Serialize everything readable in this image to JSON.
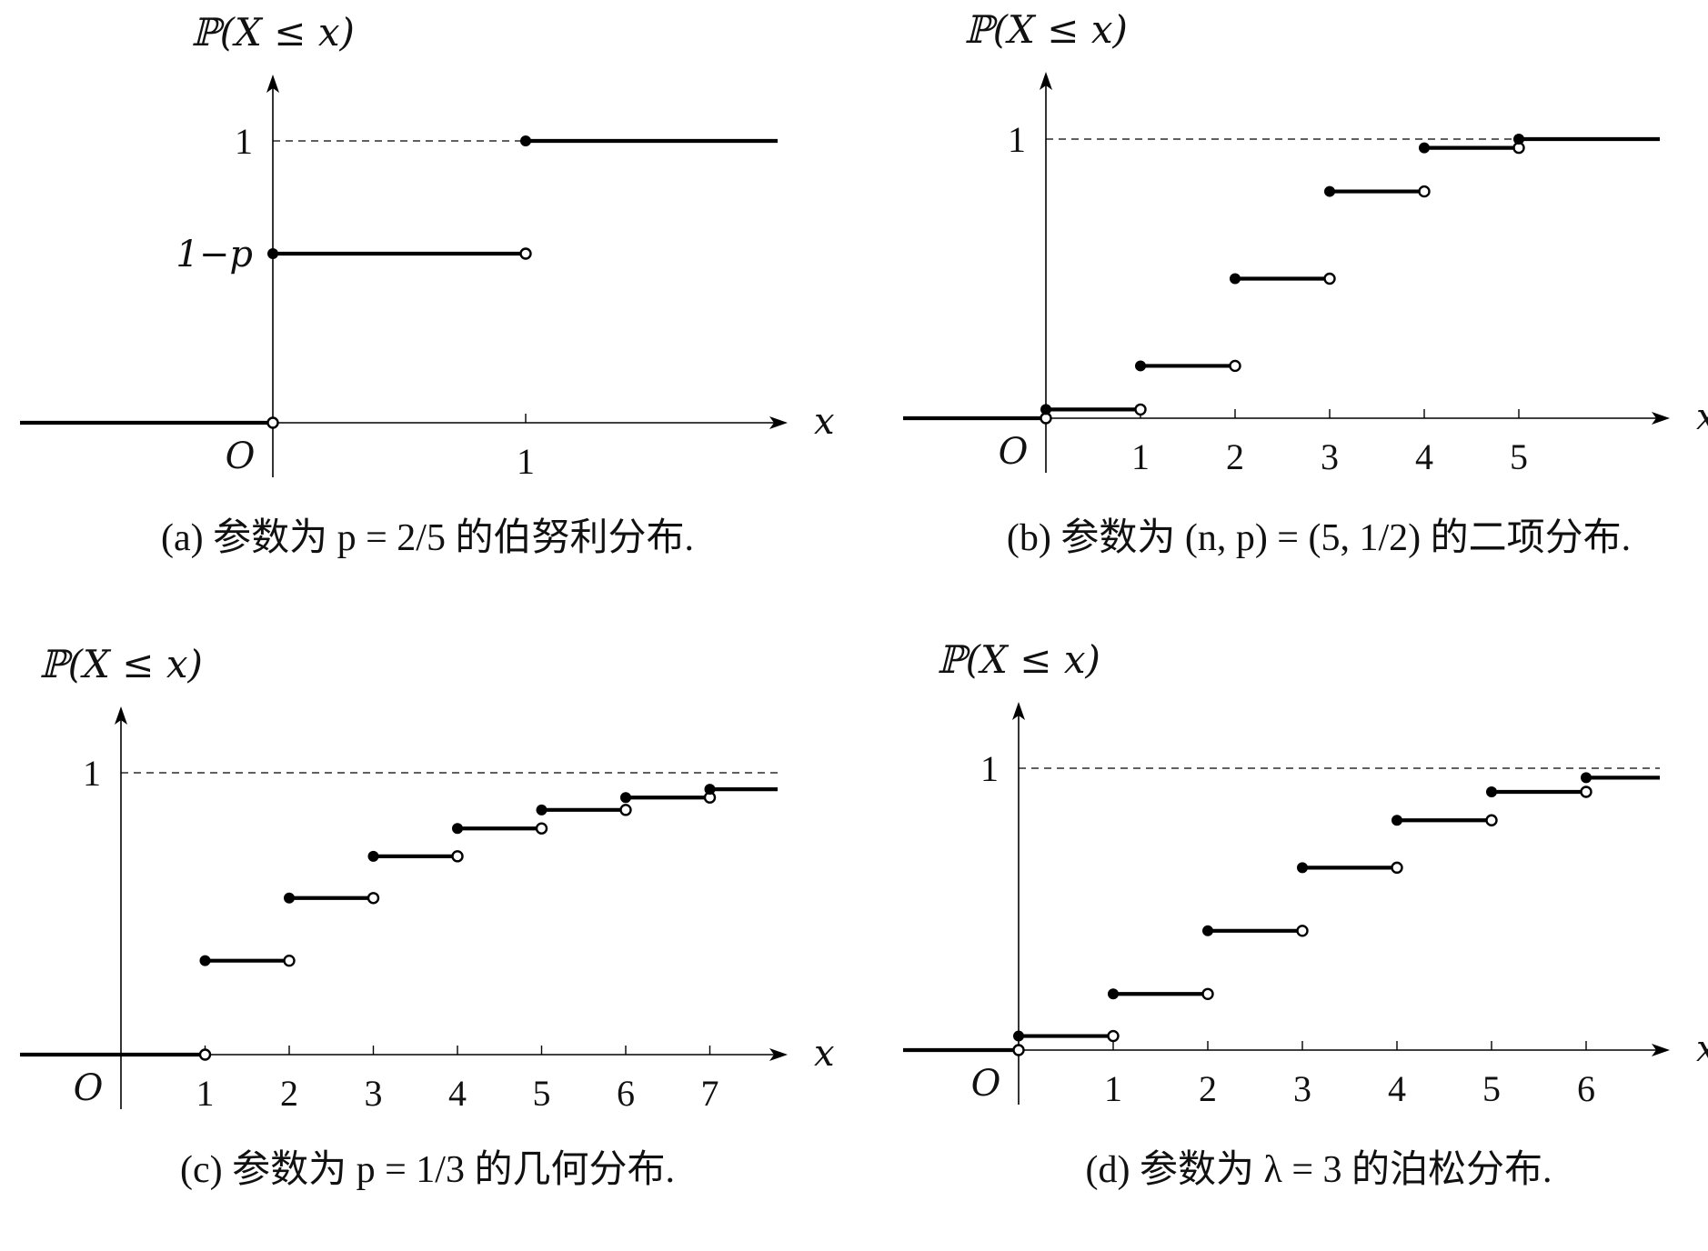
{
  "figure": {
    "charts": [
      {
        "id": "a",
        "ylabel": "ℙ(X ≤ x)",
        "xlabel": "x",
        "origin_label": "O",
        "caption": "(a) 参数为 p = 2/5 的伯努利分布.",
        "x_ticks": [
          "1"
        ],
        "y_ticks": [
          {
            "label": "1",
            "value": 1.0,
            "dashed": true
          },
          {
            "label": "1−p",
            "value": 0.6,
            "dashed": false
          }
        ]
      },
      {
        "id": "b",
        "ylabel": "ℙ(X ≤ x)",
        "xlabel": "x",
        "origin_label": "O",
        "caption": "(b) 参数为 (n, p) = (5, 1/2) 的二项分布.",
        "x_ticks": [
          "1",
          "2",
          "3",
          "4",
          "5"
        ],
        "y_ticks": [
          {
            "label": "1",
            "value": 1.0,
            "dashed": true
          }
        ]
      },
      {
        "id": "c",
        "ylabel": "ℙ(X ≤ x)",
        "xlabel": "x",
        "origin_label": "O",
        "caption": "(c) 参数为 p = 1/3 的几何分布.",
        "x_ticks": [
          "1",
          "2",
          "3",
          "4",
          "5",
          "6",
          "7"
        ],
        "y_ticks": [
          {
            "label": "1",
            "value": 1.0,
            "dashed": true
          }
        ]
      },
      {
        "id": "d",
        "ylabel": "ℙ(X ≤ x)",
        "xlabel": "x",
        "origin_label": "O",
        "caption": "(d) 参数为 λ = 3 的泊松分布.",
        "x_ticks": [
          "1",
          "2",
          "3",
          "4",
          "5",
          "6"
        ],
        "y_ticks": [
          {
            "label": "1",
            "value": 1.0,
            "dashed": true
          }
        ]
      }
    ]
  },
  "chart_data": [
    {
      "type": "step",
      "distribution": "Bernoulli(p = 2/5)",
      "x_range": [
        -1.0,
        1.95
      ],
      "ylim": [
        0,
        1
      ],
      "jumps": [
        0,
        1
      ],
      "values": [
        0.6,
        1.0
      ]
    },
    {
      "type": "step",
      "distribution": "Binomial(n = 5, p = 1/2)",
      "x_range": [
        -1.5,
        6.5
      ],
      "ylim": [
        0,
        1
      ],
      "jumps": [
        0,
        1,
        2,
        3,
        4,
        5
      ],
      "values": [
        0.03125,
        0.1875,
        0.5,
        0.8125,
        0.96875,
        1.0
      ]
    },
    {
      "type": "step",
      "distribution": "Geometric(p = 1/3)",
      "x_range": [
        -1.2,
        7.8
      ],
      "ylim": [
        0,
        1
      ],
      "jumps": [
        1,
        2,
        3,
        4,
        5,
        6,
        7
      ],
      "values": [
        0.3333,
        0.5556,
        0.7037,
        0.8025,
        0.8683,
        0.9122,
        0.9415
      ]
    },
    {
      "type": "step",
      "distribution": "Poisson(λ = 3)",
      "x_range": [
        -1.2,
        6.8
      ],
      "ylim": [
        0,
        1
      ],
      "jumps": [
        0,
        1,
        2,
        3,
        4,
        5,
        6
      ],
      "values": [
        0.0498,
        0.1991,
        0.4232,
        0.6472,
        0.8153,
        0.9161,
        0.9665
      ]
    }
  ]
}
